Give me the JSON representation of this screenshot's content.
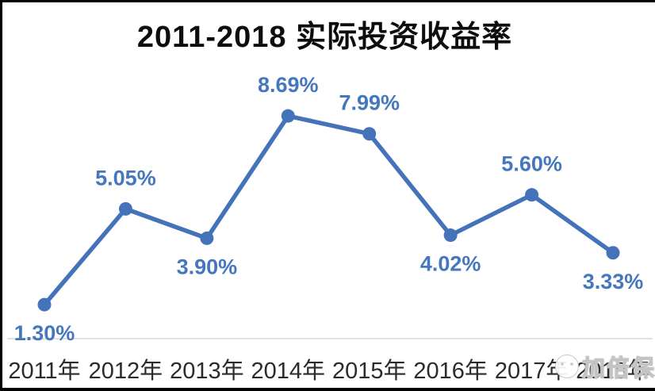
{
  "title": "2011-2018 实际投资收益率",
  "watermark": {
    "text": "加倍保",
    "icon": "mascot-logo"
  },
  "chart_data": {
    "type": "line",
    "title": "2011-2018 实际投资收益率",
    "categories": [
      "2011年",
      "2012年",
      "2013年",
      "2014年",
      "2015年",
      "2016年",
      "2017年",
      "2018年"
    ],
    "values": [
      1.3,
      5.05,
      3.9,
      8.69,
      7.99,
      4.02,
      5.6,
      3.33
    ],
    "point_labels": [
      "1.30%",
      "5.05%",
      "3.90%",
      "8.69%",
      "7.99%",
      "4.02%",
      "5.60%",
      "3.33%"
    ],
    "label_placement": [
      "below",
      "above",
      "below",
      "above",
      "above",
      "below",
      "above",
      "below"
    ],
    "xlabel": "",
    "ylabel": "",
    "ylim": [
      0,
      10
    ],
    "grid": false,
    "legend": false,
    "line_color": "#4573BA",
    "marker_color": "#4573BA",
    "label_color": "#4577BE",
    "axis_line_color": "#D9D9D9",
    "tick_label_color": "#2b2b2b"
  }
}
